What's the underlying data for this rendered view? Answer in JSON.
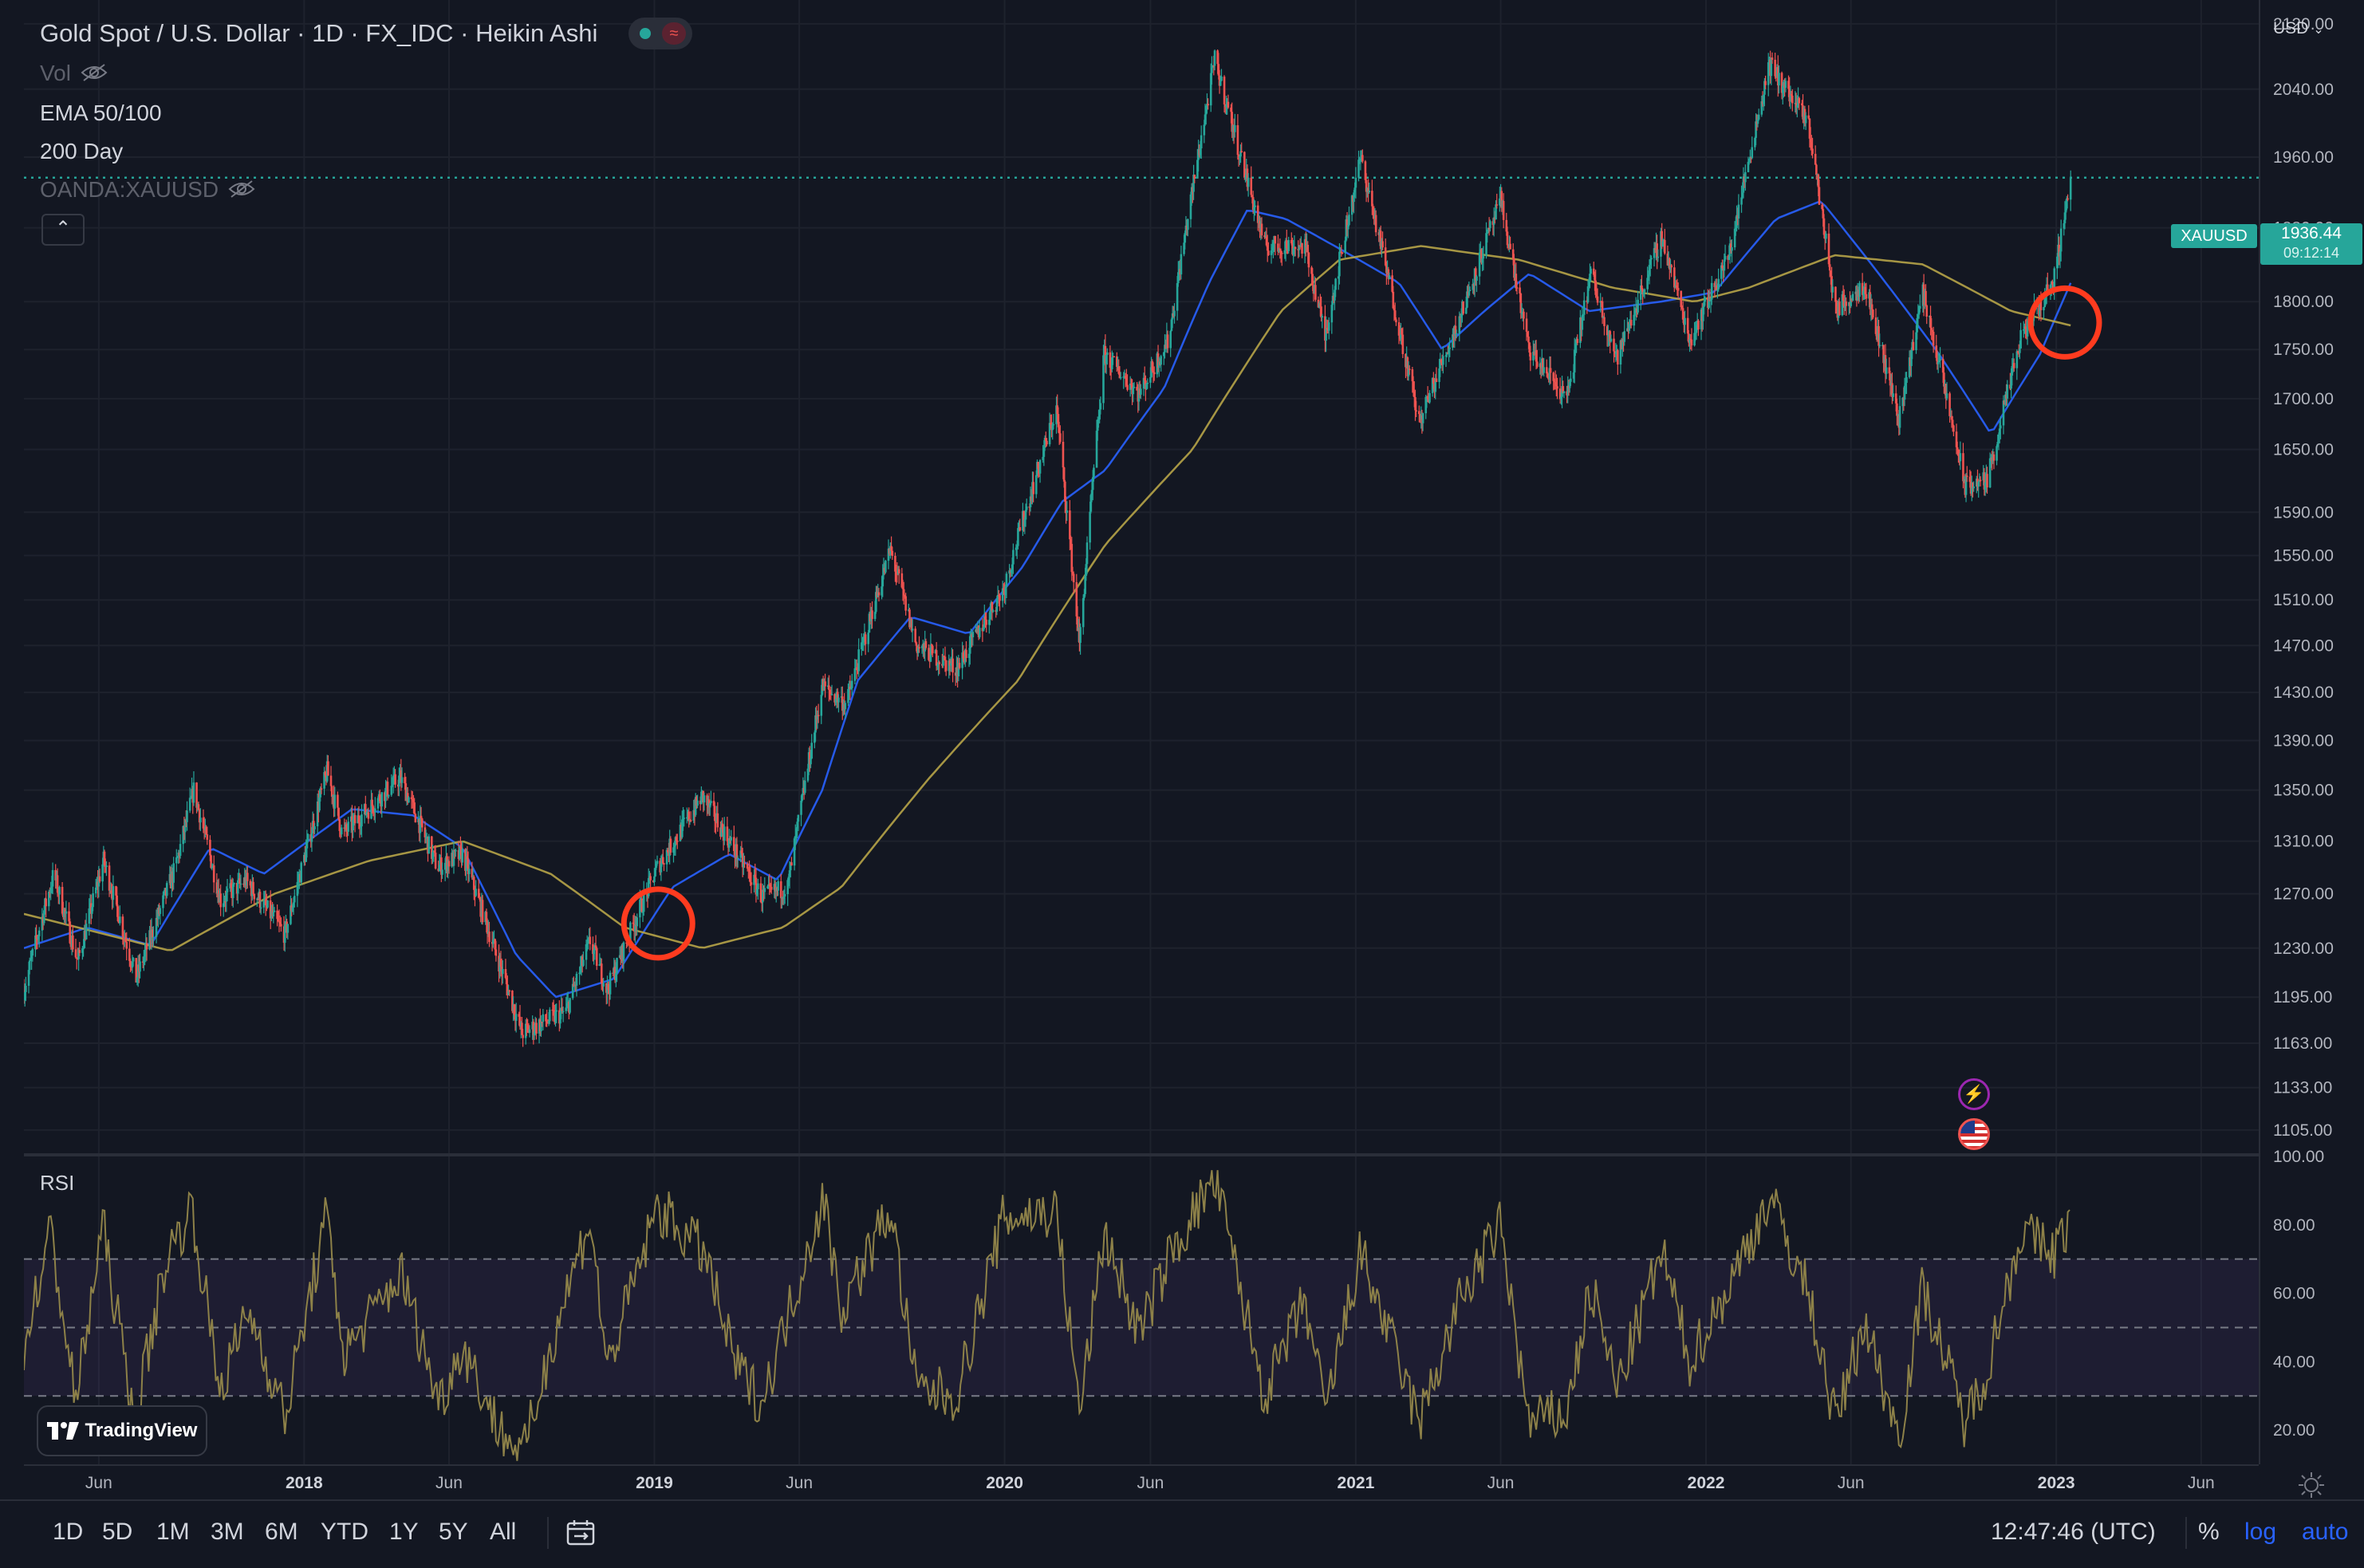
{
  "header": {
    "title": "Gold Spot / U.S. Dollar · 1D · FX_IDC · Heikin Ashi",
    "vol_label": "Vol",
    "ema_label": "EMA 50/100",
    "ma_label": "200 Day",
    "compare_label": "OANDA:XAUUSD",
    "currency": "USD"
  },
  "price_badge": {
    "symbol": "XAUUSD",
    "price": "1936.44",
    "countdown": "09:12:14"
  },
  "rsi_label": "RSI",
  "brand": "TradingView",
  "toolbar": {
    "timeframes": [
      "1D",
      "5D",
      "1M",
      "3M",
      "6M",
      "YTD",
      "1Y",
      "5Y",
      "All"
    ],
    "clock": "12:47:46 (UTC)",
    "percent": "%",
    "log": "log",
    "auto": "auto"
  },
  "colors": {
    "up": "#26a69a",
    "down": "#ef5350",
    "ema_fast": "#2962ff",
    "ma_slow": "#b7a448",
    "rsi": "#8d8148",
    "highlight_circle": "#ff3b1f",
    "background": "#131722"
  },
  "chart_data": [
    {
      "type": "candlestick",
      "title": "Gold Spot / U.S. Dollar · 1D · FX_IDC · Heikin Ashi",
      "log_scale": true,
      "ylim": [
        1090,
        2150
      ],
      "xlim": [
        "2017-03-15",
        "2023-07-31"
      ],
      "x_ticks": [
        {
          "date": "2017-06-01",
          "label": "Jun",
          "major": false
        },
        {
          "date": "2018-01-01",
          "label": "2018",
          "major": true
        },
        {
          "date": "2018-06-01",
          "label": "Jun",
          "major": false
        },
        {
          "date": "2019-01-01",
          "label": "2019",
          "major": true
        },
        {
          "date": "2019-06-01",
          "label": "Jun",
          "major": false
        },
        {
          "date": "2020-01-01",
          "label": "2020",
          "major": true
        },
        {
          "date": "2020-06-01",
          "label": "Jun",
          "major": false
        },
        {
          "date": "2021-01-01",
          "label": "2021",
          "major": true
        },
        {
          "date": "2021-06-01",
          "label": "Jun",
          "major": false
        },
        {
          "date": "2022-01-01",
          "label": "2022",
          "major": true
        },
        {
          "date": "2022-06-01",
          "label": "Jun",
          "major": false
        },
        {
          "date": "2023-01-01",
          "label": "2023",
          "major": true
        },
        {
          "date": "2023-06-01",
          "label": "Jun",
          "major": false
        }
      ],
      "y_ticks": [
        {
          "value": 2120,
          "label": "2120.00"
        },
        {
          "value": 2040,
          "label": "2040.00"
        },
        {
          "value": 1960,
          "label": "1960.00"
        },
        {
          "value": 1880,
          "label": "1880.00"
        },
        {
          "value": 1800,
          "label": "1800.00"
        },
        {
          "value": 1750,
          "label": "1750.00"
        },
        {
          "value": 1700,
          "label": "1700.00"
        },
        {
          "value": 1650,
          "label": "1650.00"
        },
        {
          "value": 1590,
          "label": "1590.00"
        },
        {
          "value": 1550,
          "label": "1550.00"
        },
        {
          "value": 1510,
          "label": "1510.00"
        },
        {
          "value": 1470,
          "label": "1470.00"
        },
        {
          "value": 1430,
          "label": "1430.00"
        },
        {
          "value": 1390,
          "label": "1390.00"
        },
        {
          "value": 1350,
          "label": "1350.00"
        },
        {
          "value": 1310,
          "label": "1310.00"
        },
        {
          "value": 1270,
          "label": "1270.00"
        },
        {
          "value": 1230,
          "label": "1230.00"
        },
        {
          "value": 1195,
          "label": "1195.00"
        },
        {
          "value": 1163,
          "label": "1163.00"
        },
        {
          "value": 1133,
          "label": "1133.00"
        },
        {
          "value": 1105,
          "label": "1105.00"
        }
      ],
      "last_price": 1936.44,
      "price_path": [
        [
          "2017-03-15",
          1200
        ],
        [
          "2017-04-15",
          1285
        ],
        [
          "2017-05-10",
          1220
        ],
        [
          "2017-06-06",
          1295
        ],
        [
          "2017-07-10",
          1208
        ],
        [
          "2017-08-20",
          1290
        ],
        [
          "2017-09-08",
          1350
        ],
        [
          "2017-10-06",
          1265
        ],
        [
          "2017-11-01",
          1280
        ],
        [
          "2017-12-12",
          1240
        ],
        [
          "2018-01-25",
          1365
        ],
        [
          "2018-02-10",
          1315
        ],
        [
          "2018-04-11",
          1360
        ],
        [
          "2018-05-20",
          1290
        ],
        [
          "2018-06-15",
          1300
        ],
        [
          "2018-08-16",
          1170
        ],
        [
          "2018-10-01",
          1185
        ],
        [
          "2018-10-26",
          1235
        ],
        [
          "2018-11-13",
          1200
        ],
        [
          "2019-01-04",
          1290
        ],
        [
          "2019-02-20",
          1345
        ],
        [
          "2019-04-23",
          1268
        ],
        [
          "2019-05-20",
          1275
        ],
        [
          "2019-06-25",
          1435
        ],
        [
          "2019-07-20",
          1420
        ],
        [
          "2019-09-04",
          1555
        ],
        [
          "2019-10-01",
          1470
        ],
        [
          "2019-11-12",
          1450
        ],
        [
          "2019-12-31",
          1520
        ],
        [
          "2020-02-24",
          1690
        ],
        [
          "2020-03-19",
          1470
        ],
        [
          "2020-04-14",
          1745
        ],
        [
          "2020-05-20",
          1705
        ],
        [
          "2020-06-20",
          1760
        ],
        [
          "2020-08-07",
          2075
        ],
        [
          "2020-09-01",
          1970
        ],
        [
          "2020-09-28",
          1860
        ],
        [
          "2020-11-09",
          1860
        ],
        [
          "2020-11-30",
          1764
        ],
        [
          "2021-01-06",
          1959
        ],
        [
          "2021-03-08",
          1676
        ],
        [
          "2021-04-20",
          1785
        ],
        [
          "2021-06-01",
          1910
        ],
        [
          "2021-06-30",
          1750
        ],
        [
          "2021-08-09",
          1700
        ],
        [
          "2021-09-03",
          1830
        ],
        [
          "2021-09-30",
          1740
        ],
        [
          "2021-11-16",
          1870
        ],
        [
          "2021-12-15",
          1760
        ],
        [
          "2022-01-25",
          1850
        ],
        [
          "2022-03-08",
          2070
        ],
        [
          "2022-04-18",
          1998
        ],
        [
          "2022-05-16",
          1790
        ],
        [
          "2022-06-15",
          1820
        ],
        [
          "2022-07-21",
          1680
        ],
        [
          "2022-08-15",
          1810
        ],
        [
          "2022-09-28",
          1615
        ],
        [
          "2022-10-21",
          1620
        ],
        [
          "2022-11-25",
          1760
        ],
        [
          "2022-12-30",
          1825
        ],
        [
          "2023-01-16",
          1936.44
        ]
      ],
      "series": [
        {
          "name": "EMA 50",
          "type": "line",
          "values": [
            [
              "2017-03-15",
              1230
            ],
            [
              "2017-05-20",
              1245
            ],
            [
              "2017-07-25",
              1232
            ],
            [
              "2017-09-25",
              1305
            ],
            [
              "2017-11-20",
              1285
            ],
            [
              "2018-02-20",
              1335
            ],
            [
              "2018-04-25",
              1330
            ],
            [
              "2018-06-15",
              1305
            ],
            [
              "2018-08-10",
              1225
            ],
            [
              "2018-09-20",
              1195
            ],
            [
              "2018-11-20",
              1208
            ],
            [
              "2019-01-20",
              1275
            ],
            [
              "2019-03-20",
              1300
            ],
            [
              "2019-05-10",
              1280
            ],
            [
              "2019-06-25",
              1350
            ],
            [
              "2019-08-01",
              1440
            ],
            [
              "2019-09-25",
              1495
            ],
            [
              "2019-11-25",
              1480
            ],
            [
              "2020-01-20",
              1540
            ],
            [
              "2020-03-01",
              1600
            ],
            [
              "2020-04-15",
              1630
            ],
            [
              "2020-06-15",
              1710
            ],
            [
              "2020-08-01",
              1820
            ],
            [
              "2020-09-10",
              1900
            ],
            [
              "2020-10-20",
              1890
            ],
            [
              "2020-12-10",
              1860
            ],
            [
              "2021-02-15",
              1820
            ],
            [
              "2021-04-01",
              1750
            ],
            [
              "2021-05-15",
              1790
            ],
            [
              "2021-07-01",
              1830
            ],
            [
              "2021-09-01",
              1790
            ],
            [
              "2021-11-15",
              1800
            ],
            [
              "2022-01-10",
              1810
            ],
            [
              "2022-03-15",
              1890
            ],
            [
              "2022-05-01",
              1910
            ],
            [
              "2022-06-30",
              1830
            ],
            [
              "2022-09-01",
              1745
            ],
            [
              "2022-10-25",
              1665
            ],
            [
              "2022-12-15",
              1745
            ],
            [
              "2023-01-16",
              1820
            ]
          ]
        },
        {
          "name": "200 Day",
          "type": "line",
          "values": [
            [
              "2017-03-15",
              1255
            ],
            [
              "2017-08-15",
              1228
            ],
            [
              "2017-12-01",
              1270
            ],
            [
              "2018-03-10",
              1295
            ],
            [
              "2018-06-15",
              1310
            ],
            [
              "2018-09-15",
              1285
            ],
            [
              "2018-12-01",
              1245
            ],
            [
              "2019-02-20",
              1230
            ],
            [
              "2019-05-15",
              1245
            ],
            [
              "2019-07-15",
              1275
            ],
            [
              "2019-10-15",
              1360
            ],
            [
              "2020-01-15",
              1440
            ],
            [
              "2020-04-15",
              1560
            ],
            [
              "2020-07-15",
              1650
            ],
            [
              "2020-10-15",
              1790
            ],
            [
              "2020-12-15",
              1845
            ],
            [
              "2021-03-10",
              1860
            ],
            [
              "2021-06-20",
              1845
            ],
            [
              "2021-09-25",
              1815
            ],
            [
              "2021-12-20",
              1800
            ],
            [
              "2022-02-15",
              1815
            ],
            [
              "2022-05-15",
              1850
            ],
            [
              "2022-08-15",
              1840
            ],
            [
              "2022-11-15",
              1790
            ],
            [
              "2023-01-16",
              1775
            ]
          ]
        }
      ],
      "annotations": [
        {
          "type": "circle",
          "date": "2019-01-05",
          "price": 1248,
          "note": "EMA crossing 200 Day"
        },
        {
          "type": "circle",
          "date": "2023-01-10",
          "price": 1778,
          "note": "EMA crossing 200 Day"
        }
      ]
    },
    {
      "type": "line",
      "title": "RSI",
      "ylim": [
        10,
        100
      ],
      "y_ticks": [
        100,
        80,
        60,
        40,
        20
      ],
      "bands": {
        "upper": 70,
        "middle": 50,
        "lower": 30
      },
      "values": [
        [
          "2017-03-15",
          45
        ],
        [
          "2017-04-12",
          78
        ],
        [
          "2017-05-08",
          28
        ],
        [
          "2017-06-05",
          80
        ],
        [
          "2017-07-08",
          22
        ],
        [
          "2017-08-10",
          70
        ],
        [
          "2017-09-06",
          85
        ],
        [
          "2017-10-05",
          32
        ],
        [
          "2017-11-05",
          55
        ],
        [
          "2017-12-12",
          24
        ],
        [
          "2018-01-24",
          82
        ],
        [
          "2018-02-12",
          42
        ],
        [
          "2018-04-12",
          66
        ],
        [
          "2018-05-22",
          28
        ],
        [
          "2018-06-15",
          45
        ],
        [
          "2018-07-20",
          22
        ],
        [
          "2018-08-17",
          12
        ],
        [
          "2018-09-20",
          50
        ],
        [
          "2018-10-26",
          82
        ],
        [
          "2018-11-13",
          38
        ],
        [
          "2019-01-04",
          85
        ],
        [
          "2019-02-22",
          72
        ],
        [
          "2019-03-25",
          40
        ],
        [
          "2019-04-23",
          28
        ],
        [
          "2019-06-26",
          88
        ],
        [
          "2019-07-15",
          55
        ],
        [
          "2019-09-04",
          85
        ],
        [
          "2019-10-01",
          32
        ],
        [
          "2019-11-12",
          30
        ],
        [
          "2019-12-31",
          82
        ],
        [
          "2020-02-24",
          84
        ],
        [
          "2020-03-19",
          25
        ],
        [
          "2020-04-14",
          78
        ],
        [
          "2020-05-20",
          48
        ],
        [
          "2020-06-20",
          70
        ],
        [
          "2020-08-07",
          94
        ],
        [
          "2020-09-28",
          30
        ],
        [
          "2020-11-09",
          58
        ],
        [
          "2020-11-30",
          25
        ],
        [
          "2021-01-06",
          72
        ],
        [
          "2021-03-08",
          22
        ],
        [
          "2021-04-20",
          58
        ],
        [
          "2021-06-01",
          80
        ],
        [
          "2021-06-30",
          22
        ],
        [
          "2021-08-09",
          25
        ],
        [
          "2021-09-03",
          62
        ],
        [
          "2021-09-30",
          32
        ],
        [
          "2021-11-16",
          72
        ],
        [
          "2021-12-15",
          40
        ],
        [
          "2022-01-25",
          62
        ],
        [
          "2022-03-08",
          88
        ],
        [
          "2022-04-18",
          60
        ],
        [
          "2022-05-16",
          22
        ],
        [
          "2022-06-15",
          52
        ],
        [
          "2022-07-21",
          18
        ],
        [
          "2022-08-15",
          62
        ],
        [
          "2022-09-28",
          22
        ],
        [
          "2022-10-21",
          38
        ],
        [
          "2022-11-25",
          78
        ],
        [
          "2022-12-30",
          72
        ],
        [
          "2023-01-16",
          82
        ]
      ]
    }
  ]
}
